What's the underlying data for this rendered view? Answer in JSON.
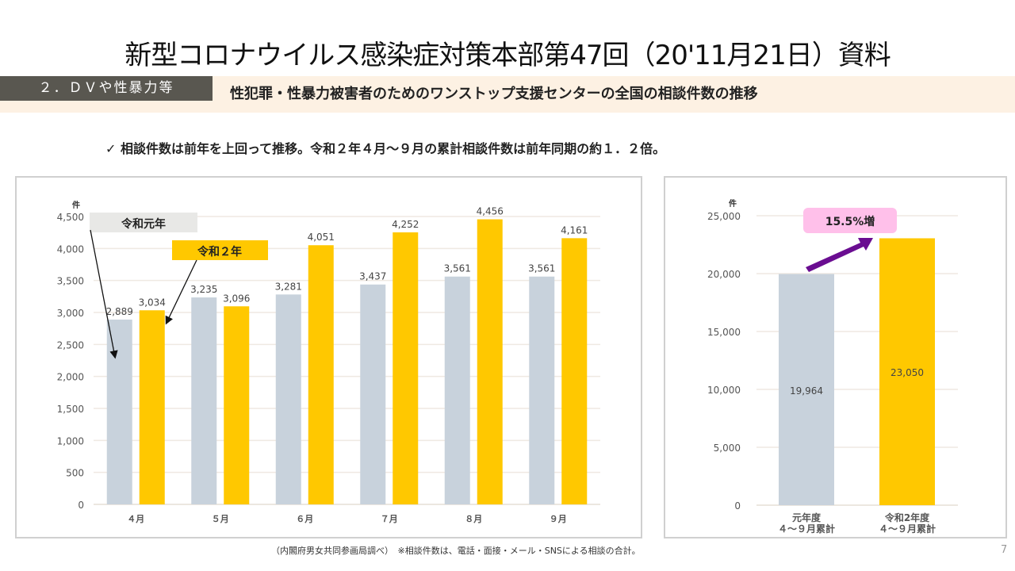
{
  "title": "新型コロナウイルス感染症対策本部第47回（20'11月21日）資料",
  "section": {
    "tag": "２．ＤＶや性暴力等",
    "heading": "性犯罪・性暴力被害者のためのワンストップ支援センターの全国の相談件数の推移"
  },
  "summary": "✓ 相談件数は前年を上回って推移。令和２年４月～９月の累計相談件数は前年同期の約１．２倍。",
  "footnote": "（内閣府男女共同参画局調べ）　※相談件数は、電話・面接・メール・SNSによる相談の合計。",
  "page_number": "7",
  "colors": {
    "prev_year": "#c8d2dc",
    "this_year": "#ffc800",
    "increase_badge": "#ffc0ea",
    "arrow": "#6a0d91",
    "label_bg_prev": "#e8e8e6"
  },
  "chart_data": [
    {
      "type": "bar",
      "title": "",
      "ylabel": "件",
      "xlabel": "",
      "categories": [
        "４月",
        "５月",
        "６月",
        "７月",
        "８月",
        "９月"
      ],
      "series": [
        {
          "name": "令和元年",
          "values": [
            2889,
            3235,
            3281,
            3437,
            3561,
            3561
          ],
          "labels": [
            "2,889",
            "3,235",
            "3,281",
            "3,437",
            "3,561",
            "3,561"
          ]
        },
        {
          "name": "令和２年",
          "values": [
            3034,
            3096,
            4051,
            4252,
            4456,
            4161
          ],
          "labels": [
            "3,034",
            "3,096",
            "4,051",
            "4,252",
            "4,456",
            "4,161"
          ]
        }
      ],
      "ylim": [
        0,
        4500
      ],
      "yticks": [
        0,
        500,
        1000,
        1500,
        2000,
        2500,
        3000,
        3500,
        4000,
        4500
      ],
      "ytick_labels": [
        "0",
        "500",
        "1,000",
        "1,500",
        "2,000",
        "2,500",
        "3,000",
        "3,500",
        "4,000",
        "4,500"
      ],
      "grid": true,
      "legend": "callout-labels-top-left"
    },
    {
      "type": "bar",
      "title": "",
      "ylabel": "件",
      "xlabel": "",
      "categories": [
        "元年度\n４～９月累計",
        "令和2年度\n４～９月累計"
      ],
      "category_lines": [
        [
          "元年度",
          "４～９月累計"
        ],
        [
          "令和2年度",
          "４～９月累計"
        ]
      ],
      "values": [
        19964,
        23050
      ],
      "labels": [
        "19,964",
        "23,050"
      ],
      "ylim": [
        0,
        25000
      ],
      "yticks": [
        0,
        5000,
        10000,
        15000,
        20000,
        25000
      ],
      "ytick_labels": [
        "0",
        "5,000",
        "10,000",
        "15,000",
        "20,000",
        "25,000"
      ],
      "grid": true,
      "annotation": "15.5%増"
    }
  ]
}
